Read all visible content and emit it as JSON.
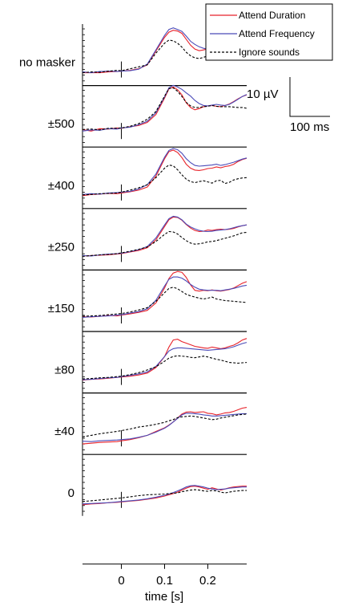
{
  "chart_data": {
    "type": "line",
    "xlabel": "time [s]",
    "x_ticks": [
      "0",
      "0.1",
      "0.2"
    ],
    "xlim": [
      -0.09,
      0.29
    ],
    "legend": {
      "placement": "top-right",
      "entries": [
        {
          "name": "Attend Duration",
          "color": "#e8222a",
          "style": "solid"
        },
        {
          "name": "Attend Frequency",
          "color": "#4b4bb8",
          "style": "solid"
        },
        {
          "name": "Ignore sounds",
          "color": "#000000",
          "style": "dashed"
        }
      ]
    },
    "scale_bar": {
      "amplitude_label": "10 µV",
      "time_label": "100 ms",
      "amplitude_uV": 10,
      "time_ms": 100
    },
    "x": [
      -0.09,
      -0.07,
      -0.05,
      -0.03,
      -0.01,
      0.0,
      0.02,
      0.04,
      0.06,
      0.08,
      0.1,
      0.11,
      0.12,
      0.13,
      0.14,
      0.15,
      0.16,
      0.17,
      0.18,
      0.19,
      0.2,
      0.21,
      0.22,
      0.23,
      0.24,
      0.25,
      0.26,
      0.27,
      0.28,
      0.29
    ],
    "panels": [
      {
        "label": "no masker",
        "series": [
          {
            "name": "Attend Duration",
            "values": [
              0,
              0,
              0,
              0.2,
              0.3,
              0.4,
              0.6,
              1,
              2,
              5.5,
              9,
              10.3,
              10.8,
              10.6,
              10,
              8.5,
              7,
              6,
              5.6,
              5.8,
              6.1,
              6,
              6.4,
              6.6,
              6.3,
              6.6,
              7.2,
              7.8,
              8.2,
              8.4
            ]
          },
          {
            "name": "Attend Frequency",
            "values": [
              0.2,
              0,
              0.3,
              0.4,
              0.3,
              0.4,
              0.5,
              0.9,
              2.2,
              5.8,
              9.5,
              11,
              11.4,
              11,
              10.5,
              9.3,
              8,
              7.2,
              6.6,
              6.2,
              6,
              6.1,
              5.9,
              5.6,
              5.8,
              6.2,
              6.8,
              7.4,
              8,
              8.6
            ]
          },
          {
            "name": "Ignore sounds",
            "values": [
              0,
              0.2,
              0.1,
              0.4,
              0.6,
              0.5,
              1,
              1.5,
              2,
              5,
              7.5,
              8.3,
              8.1,
              7.5,
              6.5,
              5.2,
              4.3,
              3.8,
              3.6,
              3.9,
              4.3,
              4.6,
              4.7,
              4,
              3.6,
              4,
              4.5,
              4.7,
              5,
              5.2
            ]
          }
        ]
      },
      {
        "label": "±500",
        "series": [
          {
            "name": "Attend Duration",
            "values": [
              1.2,
              0.8,
              1.4,
              1.3,
              1.6,
              1.5,
              1.9,
              2.2,
              3,
              5,
              9.2,
              11.5,
              12,
              11.3,
              10,
              8,
              6.8,
              6.2,
              6.5,
              7,
              7.2,
              7.3,
              7.1,
              7,
              7.3,
              7.7,
              8.3,
              9,
              9.6,
              10
            ]
          },
          {
            "name": "Attend Frequency",
            "values": [
              0.8,
              1.1,
              1,
              1.4,
              1.3,
              1.6,
              1.8,
              2.4,
              3.3,
              5.5,
              9.5,
              11.8,
              12.4,
              12,
              11.4,
              10.5,
              9.7,
              8.6,
              7.8,
              7.3,
              7.2,
              7.4,
              7.6,
              7.4,
              7.3,
              7.6,
              8.2,
              8.9,
              9.6,
              10.1
            ]
          },
          {
            "name": "Ignore sounds",
            "values": [
              1.2,
              1.3,
              1.1,
              1.5,
              1.5,
              1.6,
              2,
              2.7,
              3.8,
              5.8,
              9.7,
              11.6,
              11.8,
              10.9,
              9.6,
              8.1,
              7.2,
              6.8,
              6.8,
              7,
              7.1,
              7.3,
              7.1,
              7,
              7,
              7,
              6.9,
              6.8,
              6.8,
              6.6
            ]
          }
        ]
      },
      {
        "label": "±400",
        "series": [
          {
            "name": "Attend Duration",
            "values": [
              0,
              0.3,
              0.4,
              0.6,
              0.5,
              0.7,
              1,
              1.4,
              2.2,
              5,
              9.4,
              11.2,
              11.6,
              11,
              9.7,
              8,
              7,
              6.5,
              6.4,
              6.6,
              6.9,
              7,
              7.3,
              7.1,
              7.4,
              7.6,
              8,
              8.7,
              9.2,
              9.5
            ]
          },
          {
            "name": "Attend Frequency",
            "values": [
              0.3,
              0.5,
              0.4,
              0.7,
              0.8,
              0.9,
              1.1,
              1.7,
              2.8,
              5.5,
              9.8,
              11.5,
              12,
              11.7,
              10.8,
              9.4,
              8.4,
              7.7,
              7.5,
              7.6,
              7.7,
              7.8,
              8,
              7.7,
              7.9,
              8.2,
              8.5,
              8.9,
              9.3,
              9.6
            ]
          },
          {
            "name": "Ignore sounds",
            "values": [
              0.2,
              0.3,
              0.5,
              0.6,
              0.7,
              0.9,
              1.4,
              2,
              2.8,
              4.6,
              7,
              7.8,
              7.6,
              6.6,
              5.3,
              4.2,
              3.6,
              3.3,
              3.6,
              3.8,
              3.5,
              3.2,
              3.8,
              3.9,
              3.1,
              3.4,
              4,
              4.3,
              4.5,
              4.6
            ]
          }
        ]
      },
      {
        "label": "±250",
        "series": [
          {
            "name": "Attend Duration",
            "values": [
              0.3,
              0.4,
              0.5,
              0.6,
              0.8,
              0.9,
              1.3,
              1.7,
              2.4,
              4.4,
              7.8,
              9.5,
              10.2,
              10.1,
              9.4,
              8.3,
              7.4,
              6.8,
              6.5,
              6.6,
              6.9,
              6.8,
              7,
              7.1,
              7,
              7.1,
              7.3,
              7.7,
              8,
              8.2
            ]
          },
          {
            "name": "Attend Frequency",
            "values": [
              0.4,
              0.3,
              0.6,
              0.8,
              0.9,
              1,
              1.4,
              1.9,
              2.7,
              4.9,
              8.2,
              9.8,
              10.4,
              10.2,
              9.5,
              8.4,
              7.7,
              7.2,
              6.8,
              6.6,
              6.5,
              6.6,
              6.8,
              6.9,
              7,
              7.2,
              7.5,
              7.8,
              8,
              8.2
            ]
          },
          {
            "name": "Ignore sounds",
            "values": [
              0.2,
              0.4,
              0.6,
              0.7,
              0.9,
              1.1,
              1.5,
              2,
              2.6,
              4,
              5.8,
              6.5,
              6.4,
              5.9,
              5,
              4.2,
              3.6,
              3.3,
              3.4,
              3.6,
              3.9,
              4,
              4.2,
              4.5,
              4.8,
              5.1,
              5.4,
              5.8,
              6.2,
              6.3
            ]
          }
        ]
      },
      {
        "label": "±150",
        "series": [
          {
            "name": "Attend Duration",
            "values": [
              0.5,
              0.4,
              0.6,
              0.8,
              0.7,
              0.9,
              1.2,
              1.6,
              2.1,
              4,
              7.8,
              10.2,
              11.6,
              12,
              11.8,
              10.5,
              8.6,
              7.2,
              7,
              7.2,
              7.1,
              7.3,
              7.1,
              7,
              7.2,
              7.4,
              7.8,
              8.4,
              9,
              9.4
            ]
          },
          {
            "name": "Attend Frequency",
            "values": [
              0.3,
              0.5,
              0.6,
              0.7,
              0.9,
              1,
              1.4,
              1.8,
              2.5,
              4.7,
              8.3,
              10,
              10.6,
              10.6,
              10.3,
              9.6,
              8.7,
              8,
              7.5,
              7.3,
              7.2,
              7.2,
              7.2,
              7.1,
              7.3,
              7.5,
              7.7,
              8,
              8.3,
              8.5
            ]
          },
          {
            "name": "Ignore sounds",
            "values": [
              0.6,
              0.7,
              0.8,
              1,
              1.2,
              1.3,
              1.7,
              2.2,
              2.8,
              4.4,
              6.6,
              7.7,
              8,
              7.6,
              6.9,
              6.2,
              5.8,
              5.5,
              5.2,
              5,
              5.2,
              5.5,
              5,
              4.8,
              4.6,
              4.5,
              4.4,
              4.3,
              4.2,
              4.1
            ]
          }
        ]
      },
      {
        "label": "±80",
        "series": [
          {
            "name": "Attend Duration",
            "values": [
              0,
              0.2,
              0.3,
              0.5,
              0.7,
              0.8,
              1,
              1.3,
              1.8,
              3.2,
              6,
              8.4,
              10.2,
              10.4,
              9.8,
              9.4,
              9,
              8.6,
              8.4,
              8.2,
              8.1,
              8.4,
              8.2,
              8,
              8.2,
              8.6,
              8.9,
              9.5,
              10.2,
              10.6
            ]
          },
          {
            "name": "Attend Frequency",
            "values": [
              0.1,
              0.2,
              0.4,
              0.6,
              0.7,
              0.9,
              1.2,
              1.6,
              2.1,
              3.5,
              6,
              7.4,
              8,
              8.2,
              8.2,
              8.1,
              8,
              7.9,
              7.8,
              7.7,
              7.6,
              7.7,
              7.8,
              7.9,
              8,
              8.2,
              8.5,
              8.9,
              9.3,
              9.6
            ]
          },
          {
            "name": "Ignore sounds",
            "values": [
              0.3,
              0.4,
              0.6,
              0.7,
              0.9,
              1,
              1.4,
              1.9,
              2.6,
              3.4,
              4.8,
              5.6,
              6,
              6.2,
              6.1,
              6,
              5.8,
              5.7,
              5.9,
              6.1,
              5.9,
              5.6,
              5.3,
              5.1,
              4.8,
              4.5,
              4.4,
              4.3,
              4.4,
              4.5
            ]
          }
        ]
      },
      {
        "label": "±40",
        "series": [
          {
            "name": "Attend Duration",
            "values": [
              -0.6,
              -0.4,
              -0.2,
              -0.1,
              0,
              0.2,
              0.5,
              1,
              1.6,
              2.6,
              3.5,
              4.2,
              5,
              6,
              7,
              7.5,
              7.6,
              7.4,
              7.5,
              7.6,
              7.2,
              7.1,
              6.8,
              7,
              7.3,
              7.4,
              7.7,
              8.1,
              8.5,
              8.7
            ]
          },
          {
            "name": "Attend Frequency",
            "values": [
              0.1,
              0,
              0.2,
              0.3,
              0.4,
              0.5,
              0.7,
              1.1,
              1.6,
              2.4,
              3.4,
              4.1,
              5,
              5.9,
              6.8,
              7.2,
              7.2,
              7.1,
              7,
              6.8,
              6.7,
              6.5,
              6.5,
              6.6,
              6.7,
              6.8,
              6.9,
              7,
              7.1,
              7.1
            ]
          },
          {
            "name": "Ignore sounds",
            "values": [
              1.2,
              1.6,
              2,
              2.3,
              2.6,
              2.8,
              3.2,
              3.7,
              4,
              4.4,
              4.9,
              5.3,
              5.6,
              6.1,
              6.3,
              6.4,
              6.5,
              6.4,
              6.2,
              6,
              5.8,
              5.6,
              5.7,
              6,
              6.2,
              6.4,
              6.6,
              6.8,
              6.9,
              7
            ]
          }
        ]
      },
      {
        "label": "0",
        "series": [
          {
            "name": "Attend Duration",
            "values": [
              -0.4,
              -0.2,
              -0.1,
              0.1,
              0.2,
              0.3,
              0.5,
              0.7,
              1,
              1.3,
              1.8,
              2.1,
              2.4,
              2.8,
              3.3,
              3.8,
              4.2,
              4.3,
              4.1,
              3.8,
              3.5,
              3.9,
              3.6,
              3.3,
              3.6,
              3.9,
              4.1,
              4.2,
              4.3,
              4.3
            ]
          },
          {
            "name": "Attend Frequency",
            "values": [
              -0.2,
              -0.1,
              0,
              0.1,
              0.3,
              0.4,
              0.6,
              0.8,
              1.1,
              1.5,
              2,
              2.3,
              2.7,
              3.1,
              3.6,
              4.1,
              4.4,
              4.5,
              4.3,
              4.1,
              3.8,
              3.6,
              3.4,
              3.5,
              3.6,
              3.8,
              3.9,
              4,
              4.1,
              4.1
            ]
          },
          {
            "name": "Ignore sounds",
            "values": [
              0.4,
              0.6,
              0.8,
              1,
              1.2,
              1.3,
              1.6,
              1.9,
              2.1,
              2.2,
              2.3,
              2.4,
              2.5,
              2.6,
              2.9,
              3.1,
              3.3,
              3.4,
              3.3,
              3.1,
              3,
              3.2,
              3.1,
              2.8,
              2.6,
              2.8,
              3,
              3.1,
              3.2,
              3.2
            ]
          }
        ]
      }
    ]
  }
}
